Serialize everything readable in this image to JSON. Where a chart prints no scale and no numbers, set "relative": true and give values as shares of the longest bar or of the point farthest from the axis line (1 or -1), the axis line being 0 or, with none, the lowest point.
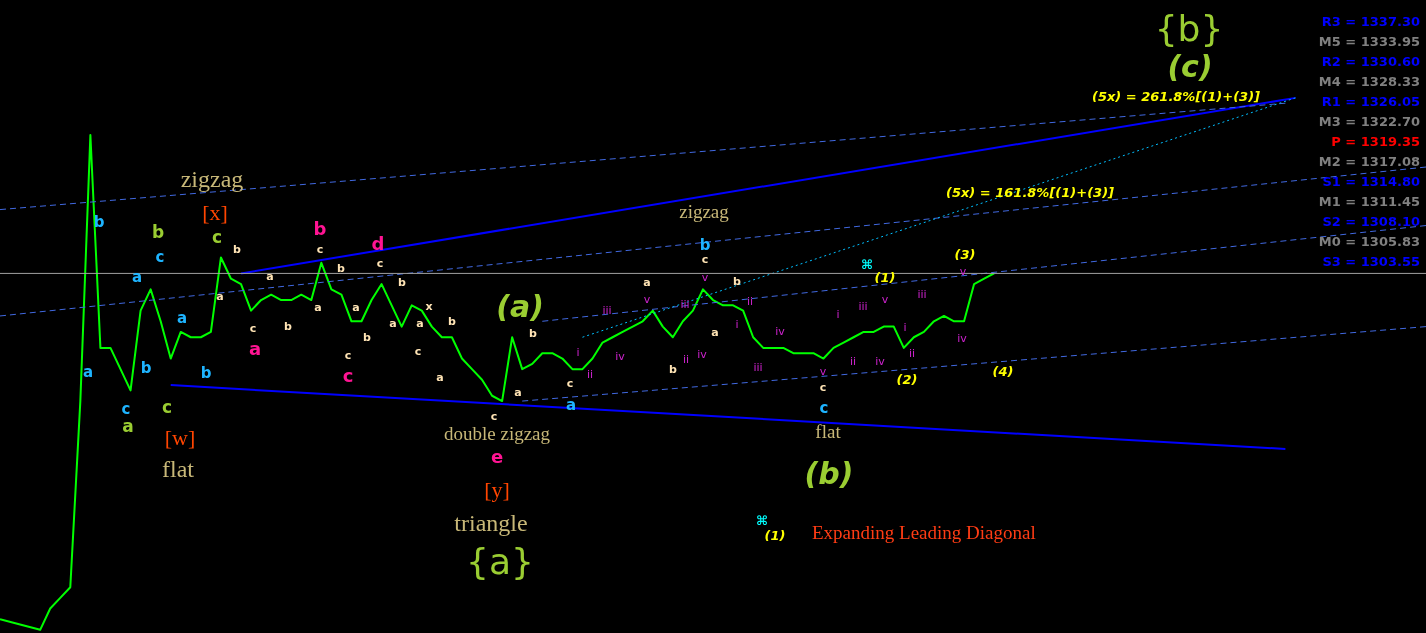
{
  "chart_data": {
    "type": "line",
    "relative": true,
    "categories": [
      null,
      null,
      null,
      null,
      null,
      null,
      null,
      null,
      null,
      null,
      null,
      null,
      null,
      null,
      null,
      null,
      null,
      null,
      null,
      null,
      null,
      null,
      null,
      null,
      null,
      null,
      null,
      null,
      null,
      null,
      null,
      null,
      null,
      null,
      null,
      null,
      null,
      null,
      null,
      null,
      null,
      null,
      null,
      null,
      null,
      null,
      null,
      null,
      null,
      null,
      null,
      null,
      null,
      null,
      null,
      null,
      null,
      null,
      null,
      null,
      null,
      null,
      null,
      null,
      null,
      null,
      null,
      null,
      null,
      null,
      null,
      null,
      null,
      null,
      null,
      null,
      null,
      null,
      null,
      null,
      null,
      null,
      null,
      null,
      null,
      null,
      null,
      null,
      null,
      null,
      null,
      null,
      null,
      null,
      null,
      null,
      null,
      null,
      null,
      null,
      null,
      null,
      null,
      null,
      null,
      null,
      null,
      null,
      null,
      null,
      null,
      null,
      null,
      null,
      null,
      null,
      null,
      null,
      null,
      null,
      null,
      null,
      null,
      null,
      null,
      null,
      null,
      null,
      null,
      null,
      null,
      null,
      null,
      null,
      null,
      null,
      null,
      null,
      null,
      null,
      null,
      null,
      null
    ],
    "series": [
      {
        "color": "#00ff00",
        "line_style": "solid",
        "values": [
          0.02,
          null,
          0.01,
          null,
          0,
          0.04,
          0.06,
          0.08,
          0.43,
          0.93,
          0.53,
          0.53,
          0.49,
          0.45,
          0.6,
          0.64,
          0.58,
          0.51,
          0.56,
          0.55,
          0.55,
          0.56,
          0.7,
          0.66,
          0.65,
          0.6,
          0.62,
          0.63,
          0.62,
          0.62,
          0.63,
          0.62,
          0.69,
          0.64,
          0.63,
          0.58,
          0.58,
          0.62,
          0.65,
          0.61,
          0.57,
          0.61,
          0.6,
          0.57,
          0.55,
          0.55,
          0.51,
          0.49,
          0.47,
          0.44,
          0.43,
          0.55,
          0.49,
          0.5,
          0.52,
          0.52,
          0.51,
          0.49,
          0.49,
          0.51,
          0.54,
          0.55,
          0.56,
          0.57,
          0.58,
          0.6,
          0.57,
          0.55,
          0.58,
          0.6,
          0.64,
          0.62,
          0.61,
          0.61,
          0.6,
          0.55,
          0.53,
          0.53,
          0.53,
          0.52,
          0.52,
          0.52,
          0.51,
          0.53,
          0.54,
          0.55,
          0.56,
          0.56,
          0.57,
          0.57,
          0.53,
          0.55,
          0.56,
          0.58,
          0.59,
          0.58,
          0.58,
          0.65,
          0.66,
          0.67,
          null,
          null,
          null,
          null,
          null,
          null,
          null,
          null,
          null,
          null,
          null,
          null,
          null,
          null,
          null,
          null,
          null,
          null,
          null,
          null,
          null,
          null,
          null,
          null,
          null,
          null,
          null,
          null,
          null,
          null,
          null,
          null,
          null,
          null,
          null,
          null,
          null,
          null,
          null,
          null,
          null,
          null,
          null
        ]
      },
      {
        "color": "#0000ff",
        "line_style": "solid",
        "values": [
          null,
          null,
          null,
          null,
          null,
          null,
          null,
          null,
          null,
          null,
          null,
          null,
          null,
          null,
          null,
          null,
          null,
          null,
          null,
          null,
          null,
          null,
          null,
          null,
          0.67,
          null,
          null,
          null,
          null,
          null,
          null,
          null,
          null,
          null,
          null,
          null,
          null,
          null,
          null,
          null,
          null,
          null,
          null,
          null,
          null,
          null,
          null,
          null,
          null,
          null,
          null,
          null,
          null,
          null,
          null,
          null,
          null,
          null,
          null,
          null,
          null,
          null,
          null,
          null,
          null,
          null,
          null,
          null,
          null,
          null,
          null,
          null,
          null,
          null,
          null,
          null,
          null,
          null,
          null,
          null,
          null,
          null,
          null,
          null,
          null,
          null,
          null,
          null,
          null,
          null,
          null,
          null,
          null,
          null,
          null,
          null,
          null,
          null,
          null,
          null,
          null,
          null,
          null,
          null,
          null,
          null,
          null,
          null,
          null,
          null,
          null,
          null,
          null,
          null,
          null,
          null,
          null,
          null,
          null,
          null,
          null,
          null,
          null,
          null,
          null,
          null,
          null,
          null,
          null,
          1.0,
          null,
          null,
          null,
          null,
          null,
          null,
          null,
          null,
          null,
          null,
          null,
          null,
          null
        ]
      },
      {
        "color": "#0000ff",
        "line_style": "solid",
        "values": [
          null,
          null,
          null,
          null,
          null,
          null,
          null,
          null,
          null,
          null,
          null,
          null,
          null,
          null,
          null,
          null,
          null,
          0.46,
          null,
          null,
          null,
          null,
          null,
          null,
          null,
          null,
          null,
          null,
          null,
          null,
          null,
          null,
          null,
          null,
          null,
          null,
          null,
          null,
          null,
          null,
          null,
          null,
          null,
          null,
          null,
          null,
          null,
          null,
          null,
          null,
          null,
          null,
          null,
          null,
          null,
          null,
          null,
          null,
          null,
          null,
          null,
          null,
          null,
          null,
          null,
          null,
          null,
          null,
          null,
          null,
          null,
          null,
          null,
          null,
          null,
          null,
          null,
          null,
          null,
          null,
          null,
          null,
          null,
          null,
          null,
          null,
          null,
          null,
          null,
          null,
          null,
          null,
          null,
          null,
          null,
          null,
          null,
          null,
          null,
          null,
          null,
          null,
          null,
          null,
          null,
          null,
          null,
          null,
          null,
          null,
          null,
          null,
          null,
          null,
          null,
          null,
          null,
          null,
          null,
          null,
          null,
          null,
          null,
          null,
          null,
          null,
          null,
          null,
          0.34,
          null,
          null,
          null,
          null,
          null,
          null,
          null,
          null,
          null,
          null,
          null,
          null,
          null,
          null
        ]
      },
      {
        "color": "#4169e1",
        "line_style": "dashed",
        "values": [
          0.79,
          null,
          null,
          null,
          null,
          null,
          null,
          null,
          null,
          null,
          null,
          null,
          null,
          null,
          null,
          null,
          null,
          null,
          null,
          null,
          null,
          null,
          null,
          null,
          null,
          null,
          null,
          null,
          null,
          null,
          null,
          null,
          null,
          null,
          null,
          null,
          null,
          null,
          null,
          null,
          null,
          null,
          null,
          null,
          null,
          null,
          null,
          null,
          null,
          null,
          null,
          null,
          null,
          null,
          null,
          null,
          null,
          null,
          null,
          null,
          null,
          null,
          null,
          null,
          null,
          null,
          null,
          null,
          null,
          null,
          null,
          null,
          null,
          null,
          null,
          null,
          null,
          null,
          null,
          null,
          null,
          null,
          null,
          null,
          null,
          null,
          null,
          null,
          null,
          null,
          null,
          null,
          null,
          null,
          null,
          null,
          null,
          null,
          null,
          null,
          null,
          null,
          null,
          null,
          null,
          null,
          null,
          null,
          null,
          null,
          null,
          null,
          null,
          null,
          null,
          null,
          null,
          null,
          null,
          null,
          null,
          null,
          null,
          null,
          null,
          null,
          null,
          null,
          0.99,
          null,
          null,
          null,
          null,
          null,
          null,
          null,
          null,
          null,
          null,
          null,
          null,
          null,
          null
        ]
      },
      {
        "color": "#4169e1",
        "line_style": "dashed",
        "values": [
          0.59,
          null,
          null,
          null,
          null,
          null,
          null,
          null,
          null,
          null,
          null,
          null,
          null,
          null,
          null,
          null,
          null,
          null,
          null,
          null,
          null,
          null,
          null,
          null,
          null,
          null,
          null,
          null,
          null,
          null,
          null,
          null,
          null,
          null,
          null,
          null,
          null,
          null,
          null,
          null,
          null,
          null,
          null,
          null,
          null,
          null,
          null,
          null,
          null,
          null,
          null,
          null,
          null,
          null,
          null,
          null,
          null,
          null,
          null,
          null,
          null,
          null,
          null,
          null,
          null,
          null,
          null,
          null,
          null,
          null,
          null,
          null,
          null,
          null,
          null,
          null,
          null,
          null,
          null,
          null,
          null,
          null,
          null,
          null,
          null,
          null,
          null,
          null,
          null,
          null,
          null,
          null,
          null,
          null,
          null,
          null,
          null,
          null,
          null,
          null,
          null,
          null,
          null,
          null,
          null,
          null,
          null,
          null,
          null,
          null,
          null,
          null,
          null,
          null,
          null,
          null,
          null,
          null,
          null,
          null,
          null,
          null,
          null,
          null,
          null,
          null,
          null,
          null,
          null,
          null,
          null,
          null,
          null,
          null,
          null,
          null,
          null,
          null,
          null,
          null,
          null,
          null,
          0.87
        ]
      },
      {
        "color": "#4169e1",
        "line_style": "dashed",
        "values": [
          null,
          null,
          null,
          null,
          null,
          null,
          null,
          null,
          null,
          null,
          null,
          null,
          null,
          null,
          null,
          null,
          null,
          null,
          null,
          null,
          null,
          null,
          null,
          null,
          null,
          null,
          null,
          null,
          null,
          null,
          null,
          null,
          null,
          null,
          null,
          null,
          null,
          null,
          null,
          null,
          null,
          null,
          null,
          null,
          null,
          null,
          null,
          null,
          null,
          null,
          null,
          null,
          0.43,
          null,
          null,
          null,
          null,
          null,
          null,
          null,
          null,
          null,
          null,
          null,
          null,
          null,
          null,
          null,
          null,
          null,
          null,
          null,
          null,
          null,
          null,
          null,
          null,
          null,
          null,
          null,
          null,
          null,
          null,
          null,
          null,
          null,
          null,
          null,
          null,
          null,
          null,
          null,
          null,
          null,
          null,
          null,
          null,
          null,
          null,
          null,
          null,
          null,
          null,
          null,
          null,
          null,
          null,
          null,
          null,
          null,
          null,
          null,
          null,
          null,
          null,
          null,
          null,
          null,
          null,
          null,
          null,
          null,
          null,
          null,
          null,
          null,
          null,
          null,
          null,
          null,
          null,
          null,
          null,
          null,
          null,
          null,
          null,
          null,
          null,
          null,
          null,
          null,
          0.57
        ]
      },
      {
        "color": "#4169e1",
        "line_style": "dashed",
        "values": [
          null,
          null,
          null,
          null,
          null,
          null,
          null,
          null,
          null,
          null,
          null,
          null,
          null,
          null,
          null,
          null,
          null,
          null,
          null,
          null,
          null,
          null,
          null,
          null,
          null,
          null,
          null,
          null,
          null,
          null,
          null,
          null,
          null,
          null,
          null,
          null,
          null,
          null,
          null,
          null,
          null,
          null,
          null,
          null,
          null,
          null,
          null,
          null,
          null,
          null,
          null,
          null,
          null,
          null,
          0.58,
          null,
          null,
          null,
          null,
          null,
          null,
          null,
          null,
          null,
          null,
          null,
          null,
          null,
          null,
          null,
          null,
          null,
          null,
          null,
          null,
          null,
          null,
          null,
          null,
          null,
          null,
          null,
          null,
          null,
          null,
          null,
          null,
          null,
          null,
          null,
          null,
          null,
          null,
          null,
          null,
          null,
          null,
          null,
          null,
          null,
          null,
          null,
          null,
          null,
          null,
          null,
          null,
          null,
          null,
          null,
          null,
          null,
          null,
          null,
          null,
          null,
          null,
          null,
          null,
          null,
          null,
          null,
          null,
          null,
          null,
          null,
          null,
          null,
          null,
          null,
          null,
          null,
          null,
          null,
          null,
          null,
          null,
          null,
          null,
          null,
          null,
          null,
          0.76
        ]
      },
      {
        "color": "#00bfff",
        "line_style": "dotted",
        "values": [
          null,
          null,
          null,
          null,
          null,
          null,
          null,
          null,
          null,
          null,
          null,
          null,
          null,
          null,
          null,
          null,
          null,
          null,
          null,
          null,
          null,
          null,
          null,
          null,
          null,
          null,
          null,
          null,
          null,
          null,
          null,
          null,
          null,
          null,
          null,
          null,
          null,
          null,
          null,
          null,
          null,
          null,
          null,
          null,
          null,
          null,
          null,
          null,
          null,
          null,
          null,
          null,
          null,
          null,
          null,
          null,
          null,
          null,
          0.55,
          null,
          null,
          null,
          null,
          null,
          null,
          null,
          null,
          null,
          null,
          null,
          null,
          null,
          null,
          null,
          null,
          null,
          null,
          null,
          null,
          null,
          null,
          null,
          null,
          null,
          null,
          null,
          null,
          null,
          null,
          null,
          null,
          null,
          null,
          null,
          null,
          null,
          null,
          null,
          null,
          null,
          null,
          null,
          null,
          null,
          null,
          null,
          null,
          null,
          null,
          null,
          null,
          null,
          null,
          null,
          null,
          null,
          null,
          null,
          null,
          null,
          null,
          null,
          null,
          null,
          null,
          null,
          null,
          null,
          null,
          1.0,
          null,
          null,
          null,
          null,
          null,
          null,
          null,
          null,
          null,
          null,
          null,
          null,
          null
        ]
      }
    ],
    "ref_lines": [
      {
        "axis": "y",
        "value": 0.67,
        "color": "#a0a0a0"
      }
    ],
    "annotations": [
      "R3 = 1337.30",
      "M5 = 1333.95",
      "R2 = 1330.60",
      "M4 = 1328.33",
      "R1 = 1326.05",
      "M3 = 1322.70",
      "P   = 1319.35",
      "M2 = 1317.08",
      "S1 = 1314.80",
      "M1 = 1311.45",
      "S2 = 1308.10",
      "M0 = 1305.83",
      "S3 = 1303.55",
      "⌘",
      "(1)",
      "Expanding Leading Diagonal",
      "zigzag",
      "[x]",
      "c",
      "b",
      "a",
      "c",
      "a",
      "b",
      "a",
      "b",
      "c",
      "b",
      "a",
      "d",
      "c",
      "b",
      "a",
      "a",
      "c",
      "c",
      "b",
      "x",
      "b",
      "a",
      "c",
      "a",
      "(a)",
      "b",
      "a",
      "c",
      "double zigzag",
      "e",
      "[y]",
      "triangle",
      "{a}",
      "b",
      "b",
      "c",
      "a",
      "a",
      "c",
      "a",
      "b",
      "c",
      "a",
      "b",
      "[w]",
      "flat",
      "zigzag",
      "b",
      "c",
      "v",
      "b",
      "a",
      "v",
      "iii",
      "iii",
      "i",
      "ii",
      "iv",
      "c",
      "a",
      "b",
      "ii",
      "iv",
      "a",
      "i",
      "ii",
      "iii",
      "iv",
      "v",
      "c",
      "c",
      "flat",
      "(b)",
      "i",
      "iii",
      "ii",
      "v",
      "iv",
      "⌘",
      "(1)",
      "(2)",
      "(3)",
      "(4)",
      "i",
      "ii",
      "iii",
      "v",
      "iv",
      "{b}",
      "(c)",
      "(5x) = 261.8%[(1)+(3)]",
      "(5x) = 161.8%[(1)+(3)]"
    ]
  }
}
